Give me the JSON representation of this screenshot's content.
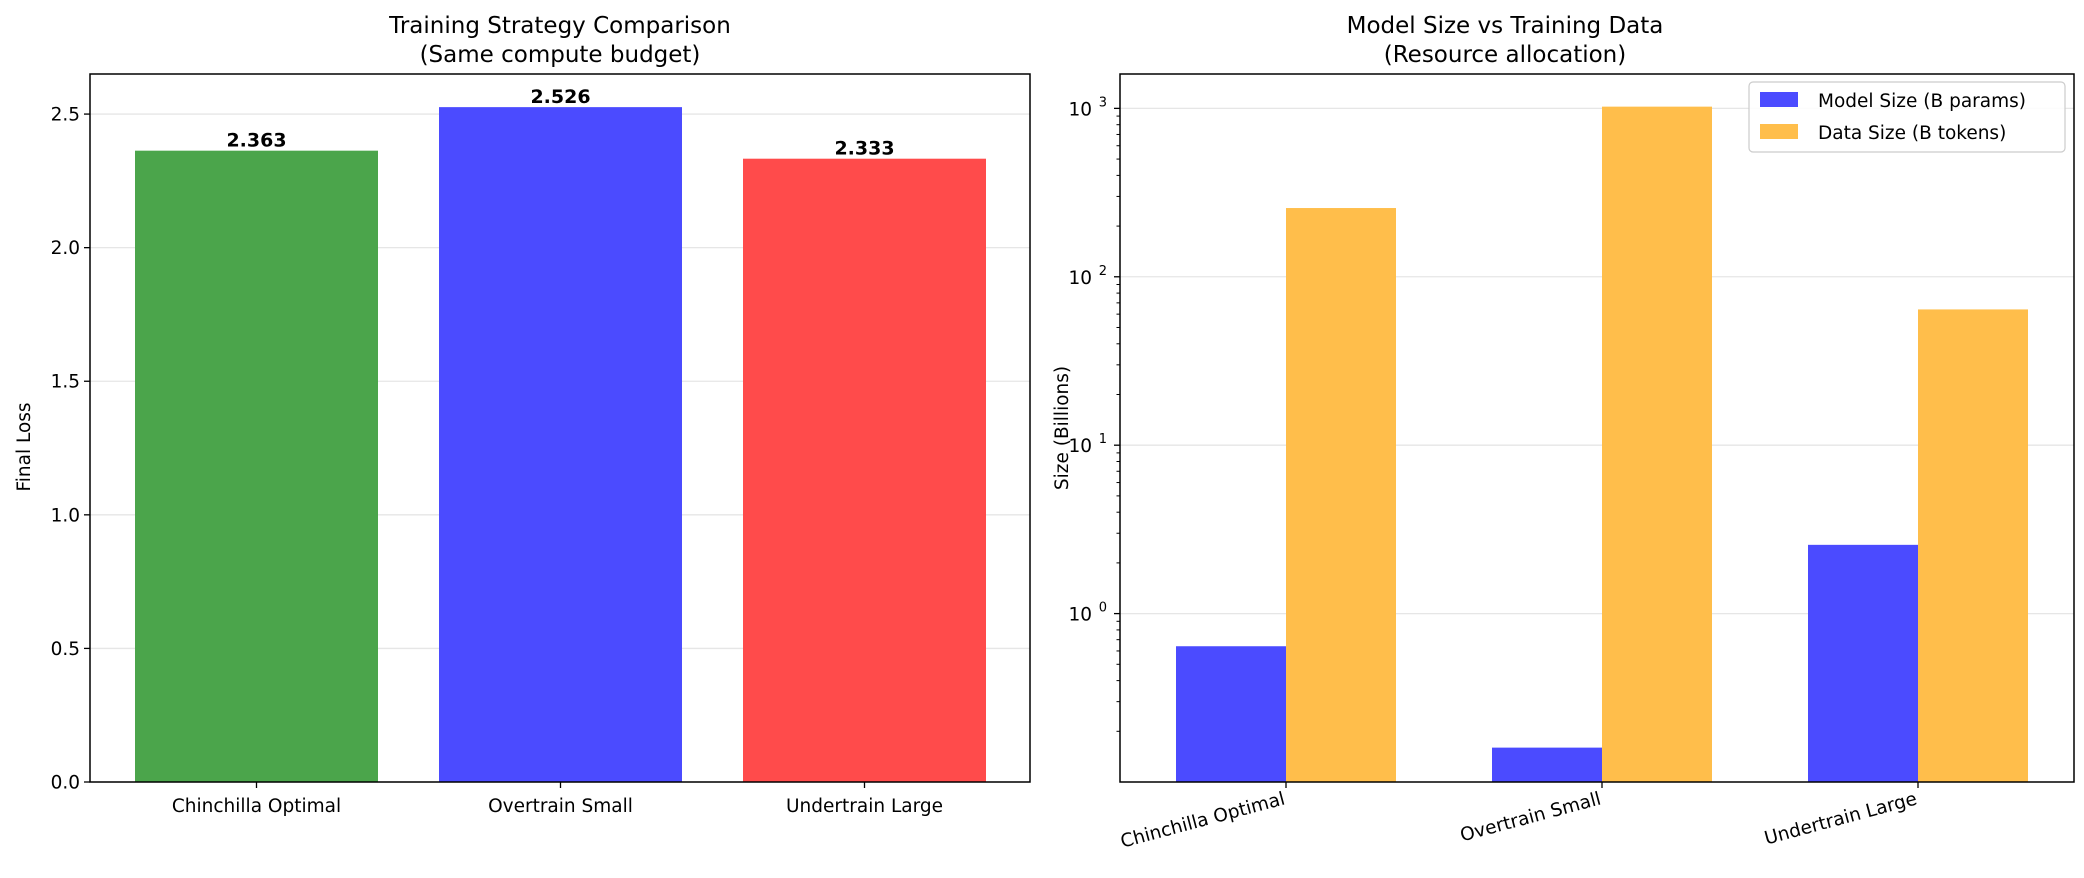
{
  "chart_data": [
    {
      "type": "bar",
      "title": "Training Strategy Comparison",
      "subtitle": "(Same compute budget)",
      "xlabel": "",
      "ylabel": "Final Loss",
      "categories": [
        "Chinchilla Optimal",
        "Overtrain Small",
        "Undertrain Large"
      ],
      "values": [
        2.363,
        2.526,
        2.333
      ],
      "value_labels": [
        "2.363",
        "2.526",
        "2.333"
      ],
      "colors": [
        "#4ba54b",
        "#4b4bff",
        "#ff4b4b"
      ],
      "ylim": [
        0,
        2.65
      ],
      "yticks": [
        0.0,
        0.5,
        1.0,
        1.5,
        2.0,
        2.5
      ],
      "ytick_labels": [
        "0.0",
        "0.5",
        "1.0",
        "1.5",
        "2.0",
        "2.5"
      ],
      "grid": "y"
    },
    {
      "type": "bar",
      "title": "Model Size vs Training Data",
      "subtitle": "(Resource allocation)",
      "xlabel": "",
      "ylabel": "Size (Billions)",
      "yscale": "log",
      "categories": [
        "Chinchilla Optimal",
        "Overtrain Small",
        "Undertrain Large"
      ],
      "series": [
        {
          "name": "Model Size (B params)",
          "values": [
            0.64,
            0.16,
            2.56
          ],
          "color": "#4b4bff"
        },
        {
          "name": "Data Size (B tokens)",
          "values": [
            256,
            1024,
            64
          ],
          "color": "#ffbe4b"
        }
      ],
      "ylim": [
        0.1,
        1600
      ],
      "yticks": [
        1,
        10,
        100,
        1000
      ],
      "ytick_labels": [
        {
          "base": "10",
          "exp": "0"
        },
        {
          "base": "10",
          "exp": "1"
        },
        {
          "base": "10",
          "exp": "2"
        },
        {
          "base": "10",
          "exp": "3"
        }
      ],
      "legend": "top-right",
      "grid": "y",
      "xtick_rotation": 15
    }
  ]
}
